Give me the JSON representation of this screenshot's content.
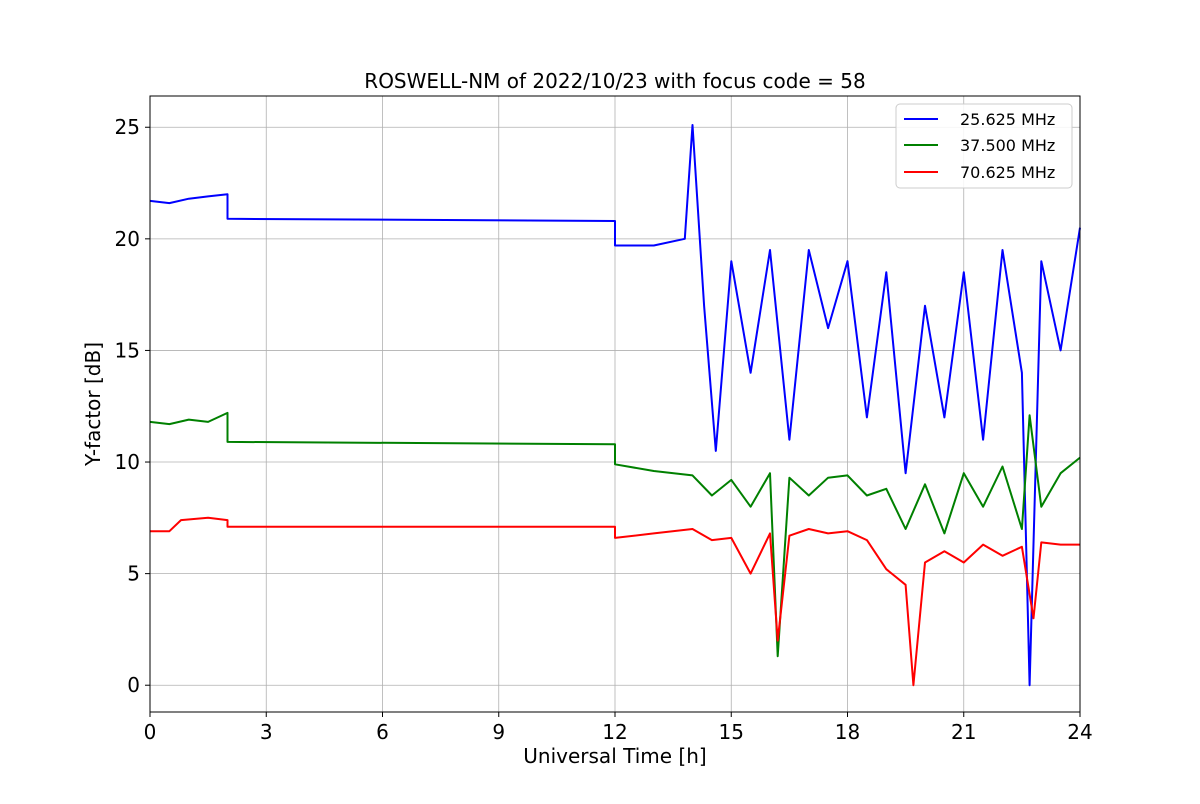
{
  "chart_data": {
    "type": "line",
    "title": "ROSWELL-NM of 2022/10/23 with focus code = 58",
    "xlabel": "Universal Time [h]",
    "ylabel": "Y-factor [dB]",
    "xlim": [
      0,
      24
    ],
    "ylim": [
      -1.2,
      26.4
    ],
    "xticks": [
      0,
      3,
      6,
      9,
      12,
      15,
      18,
      21,
      24
    ],
    "yticks": [
      0,
      5,
      10,
      15,
      20,
      25
    ],
    "xtick_labels": [
      "0",
      "3",
      "6",
      "9",
      "12",
      "15",
      "18",
      "21",
      "24"
    ],
    "ytick_labels": [
      "0",
      "5",
      "10",
      "15",
      "20",
      "25"
    ],
    "grid": true,
    "legend_position": "top-right",
    "series": [
      {
        "name": "25.625 MHz",
        "color": "#0000ff",
        "x": [
          0,
          0.5,
          1.0,
          1.5,
          2.0,
          2.0,
          12.0,
          12.0,
          13.0,
          13.8,
          14.0,
          14.3,
          14.6,
          15.0,
          15.5,
          16.0,
          16.5,
          17.0,
          17.5,
          18.0,
          18.5,
          19.0,
          19.5,
          20.0,
          20.5,
          21.0,
          21.5,
          22.0,
          22.5,
          22.7,
          23.0,
          23.5,
          24.0
        ],
        "values": [
          21.7,
          21.6,
          21.8,
          21.9,
          22.0,
          20.9,
          20.8,
          19.7,
          19.7,
          20.0,
          25.1,
          17.0,
          10.5,
          19.0,
          14.0,
          19.5,
          11.0,
          19.5,
          16.0,
          19.0,
          12.0,
          18.5,
          9.5,
          17.0,
          12.0,
          18.5,
          11.0,
          19.5,
          14.0,
          0.0,
          19.0,
          15.0,
          20.5
        ]
      },
      {
        "name": "37.500 MHz",
        "color": "#008000",
        "x": [
          0,
          0.5,
          1.0,
          1.5,
          2.0,
          2.0,
          12.0,
          12.0,
          13.0,
          14.0,
          14.5,
          15.0,
          15.5,
          16.0,
          16.2,
          16.5,
          17.0,
          17.5,
          18.0,
          18.5,
          19.0,
          19.5,
          20.0,
          20.5,
          21.0,
          21.5,
          22.0,
          22.5,
          22.7,
          23.0,
          23.5,
          24.0
        ],
        "values": [
          11.8,
          11.7,
          11.9,
          11.8,
          12.2,
          10.9,
          10.8,
          9.9,
          9.6,
          9.4,
          8.5,
          9.2,
          8.0,
          9.5,
          1.3,
          9.3,
          8.5,
          9.3,
          9.4,
          8.5,
          8.8,
          7.0,
          9.0,
          6.8,
          9.5,
          8.0,
          9.8,
          7.0,
          12.1,
          8.0,
          9.5,
          10.2
        ]
      },
      {
        "name": "70.625 MHz",
        "color": "#ff0000",
        "x": [
          0,
          0.5,
          0.8,
          1.5,
          2.0,
          2.0,
          12.0,
          12.0,
          13.0,
          14.0,
          14.5,
          15.0,
          15.5,
          16.0,
          16.2,
          16.5,
          17.0,
          17.5,
          18.0,
          18.5,
          19.0,
          19.5,
          19.7,
          20.0,
          20.5,
          21.0,
          21.5,
          22.0,
          22.5,
          22.8,
          23.0,
          23.5,
          24.0
        ],
        "values": [
          6.9,
          6.9,
          7.4,
          7.5,
          7.4,
          7.1,
          7.1,
          6.6,
          6.8,
          7.0,
          6.5,
          6.6,
          5.0,
          6.8,
          2.0,
          6.7,
          7.0,
          6.8,
          6.9,
          6.5,
          5.2,
          4.5,
          0.0,
          5.5,
          6.0,
          5.5,
          6.3,
          5.8,
          6.2,
          3.0,
          6.4,
          6.3,
          6.3
        ]
      }
    ]
  }
}
